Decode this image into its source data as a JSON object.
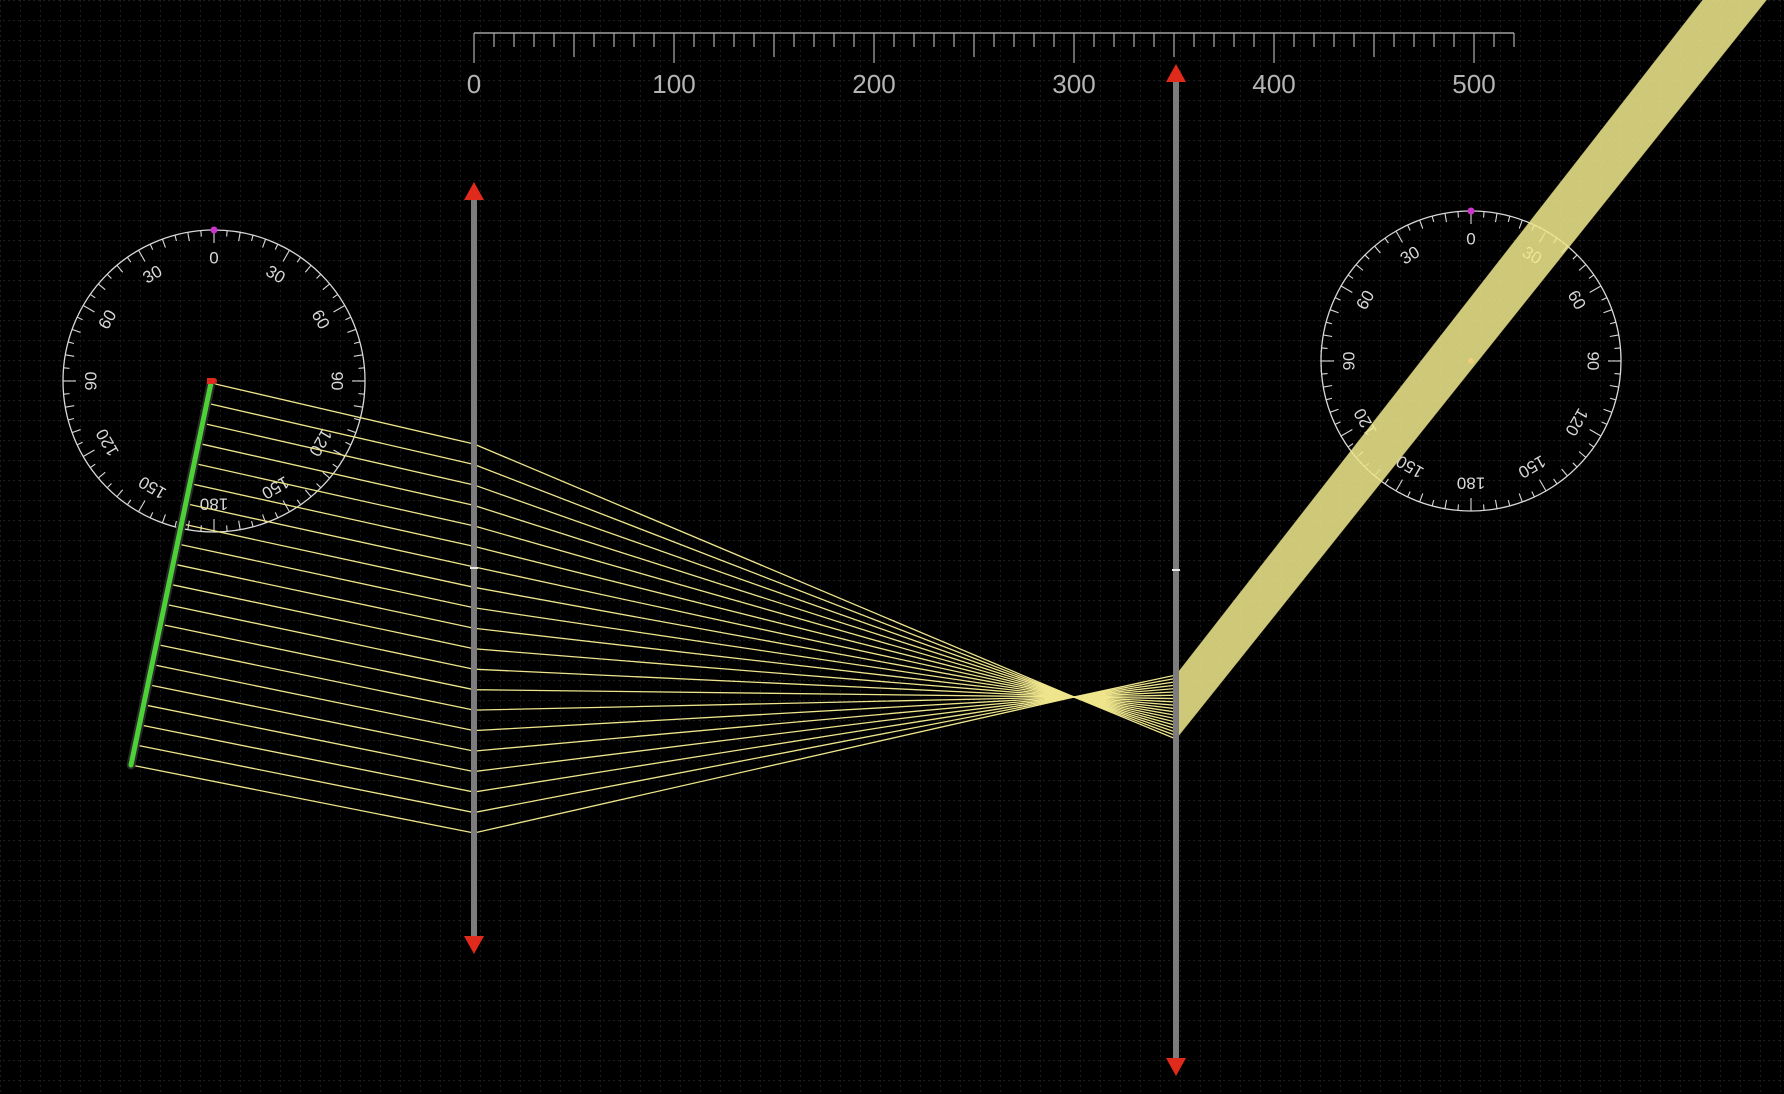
{
  "ruler": {
    "labels": [
      "0",
      "100",
      "200",
      "300",
      "400",
      "500"
    ],
    "range": [
      0,
      520
    ],
    "minor_step": 10,
    "major_step": 50,
    "color": "#a0a0a0"
  },
  "protractors": [
    {
      "id": "left",
      "labels": [
        "0",
        "30",
        "60",
        "90",
        "120",
        "150",
        "180",
        "150",
        "120",
        "90",
        "60",
        "30"
      ],
      "color": "#d8d8d8"
    },
    {
      "id": "right",
      "labels": [
        "0",
        "30",
        "60",
        "90",
        "120",
        "150",
        "180",
        "150",
        "120",
        "90",
        "60",
        "30"
      ],
      "color": "#d8d8d8"
    }
  ],
  "light_source": {
    "icon": "line-source-icon",
    "ray_count": 20,
    "color": "#4cd137"
  },
  "lenses": [
    {
      "id": "lens-1",
      "icon": "double-arrow-lens-icon"
    },
    {
      "id": "lens-2",
      "icon": "double-arrow-lens-icon"
    }
  ],
  "colors": {
    "background": "#000000",
    "grid": "#3a3a3a",
    "ray": "#eee58c",
    "beam": "#f2eb8f",
    "lens_body": "#7c7c7c",
    "lens_arrow": "#e02a1b",
    "protractor_marker": "#cc33cc",
    "pivot": "#e02a1b"
  }
}
